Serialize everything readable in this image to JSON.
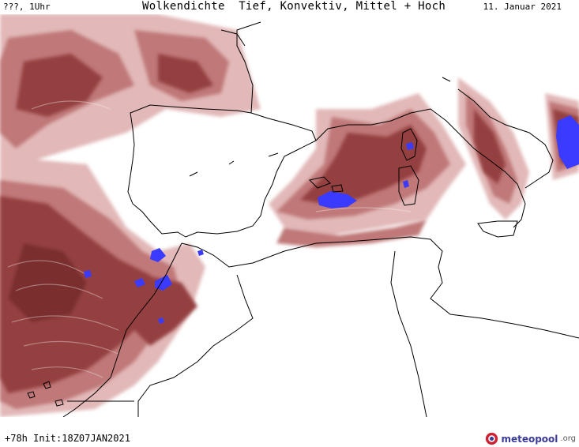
{
  "header": {
    "day_label": "???, 1Uhr",
    "title": "Wolkendichte  Tief, Konvektiv, Mittel + Hoch",
    "date": "11. Januar 2021"
  },
  "footer": {
    "run_info": "+78h Init:18Z07JAN2021"
  },
  "logo": {
    "brand": "meteopool",
    "tld": ".org",
    "icon": "meteopool-logo-icon"
  },
  "colors": {
    "cloud_light": "#e0b5b5",
    "cloud_mid": "#c07070",
    "cloud_dark": "#954242",
    "cloud_max": "#3333ff",
    "coast": "#000000"
  }
}
